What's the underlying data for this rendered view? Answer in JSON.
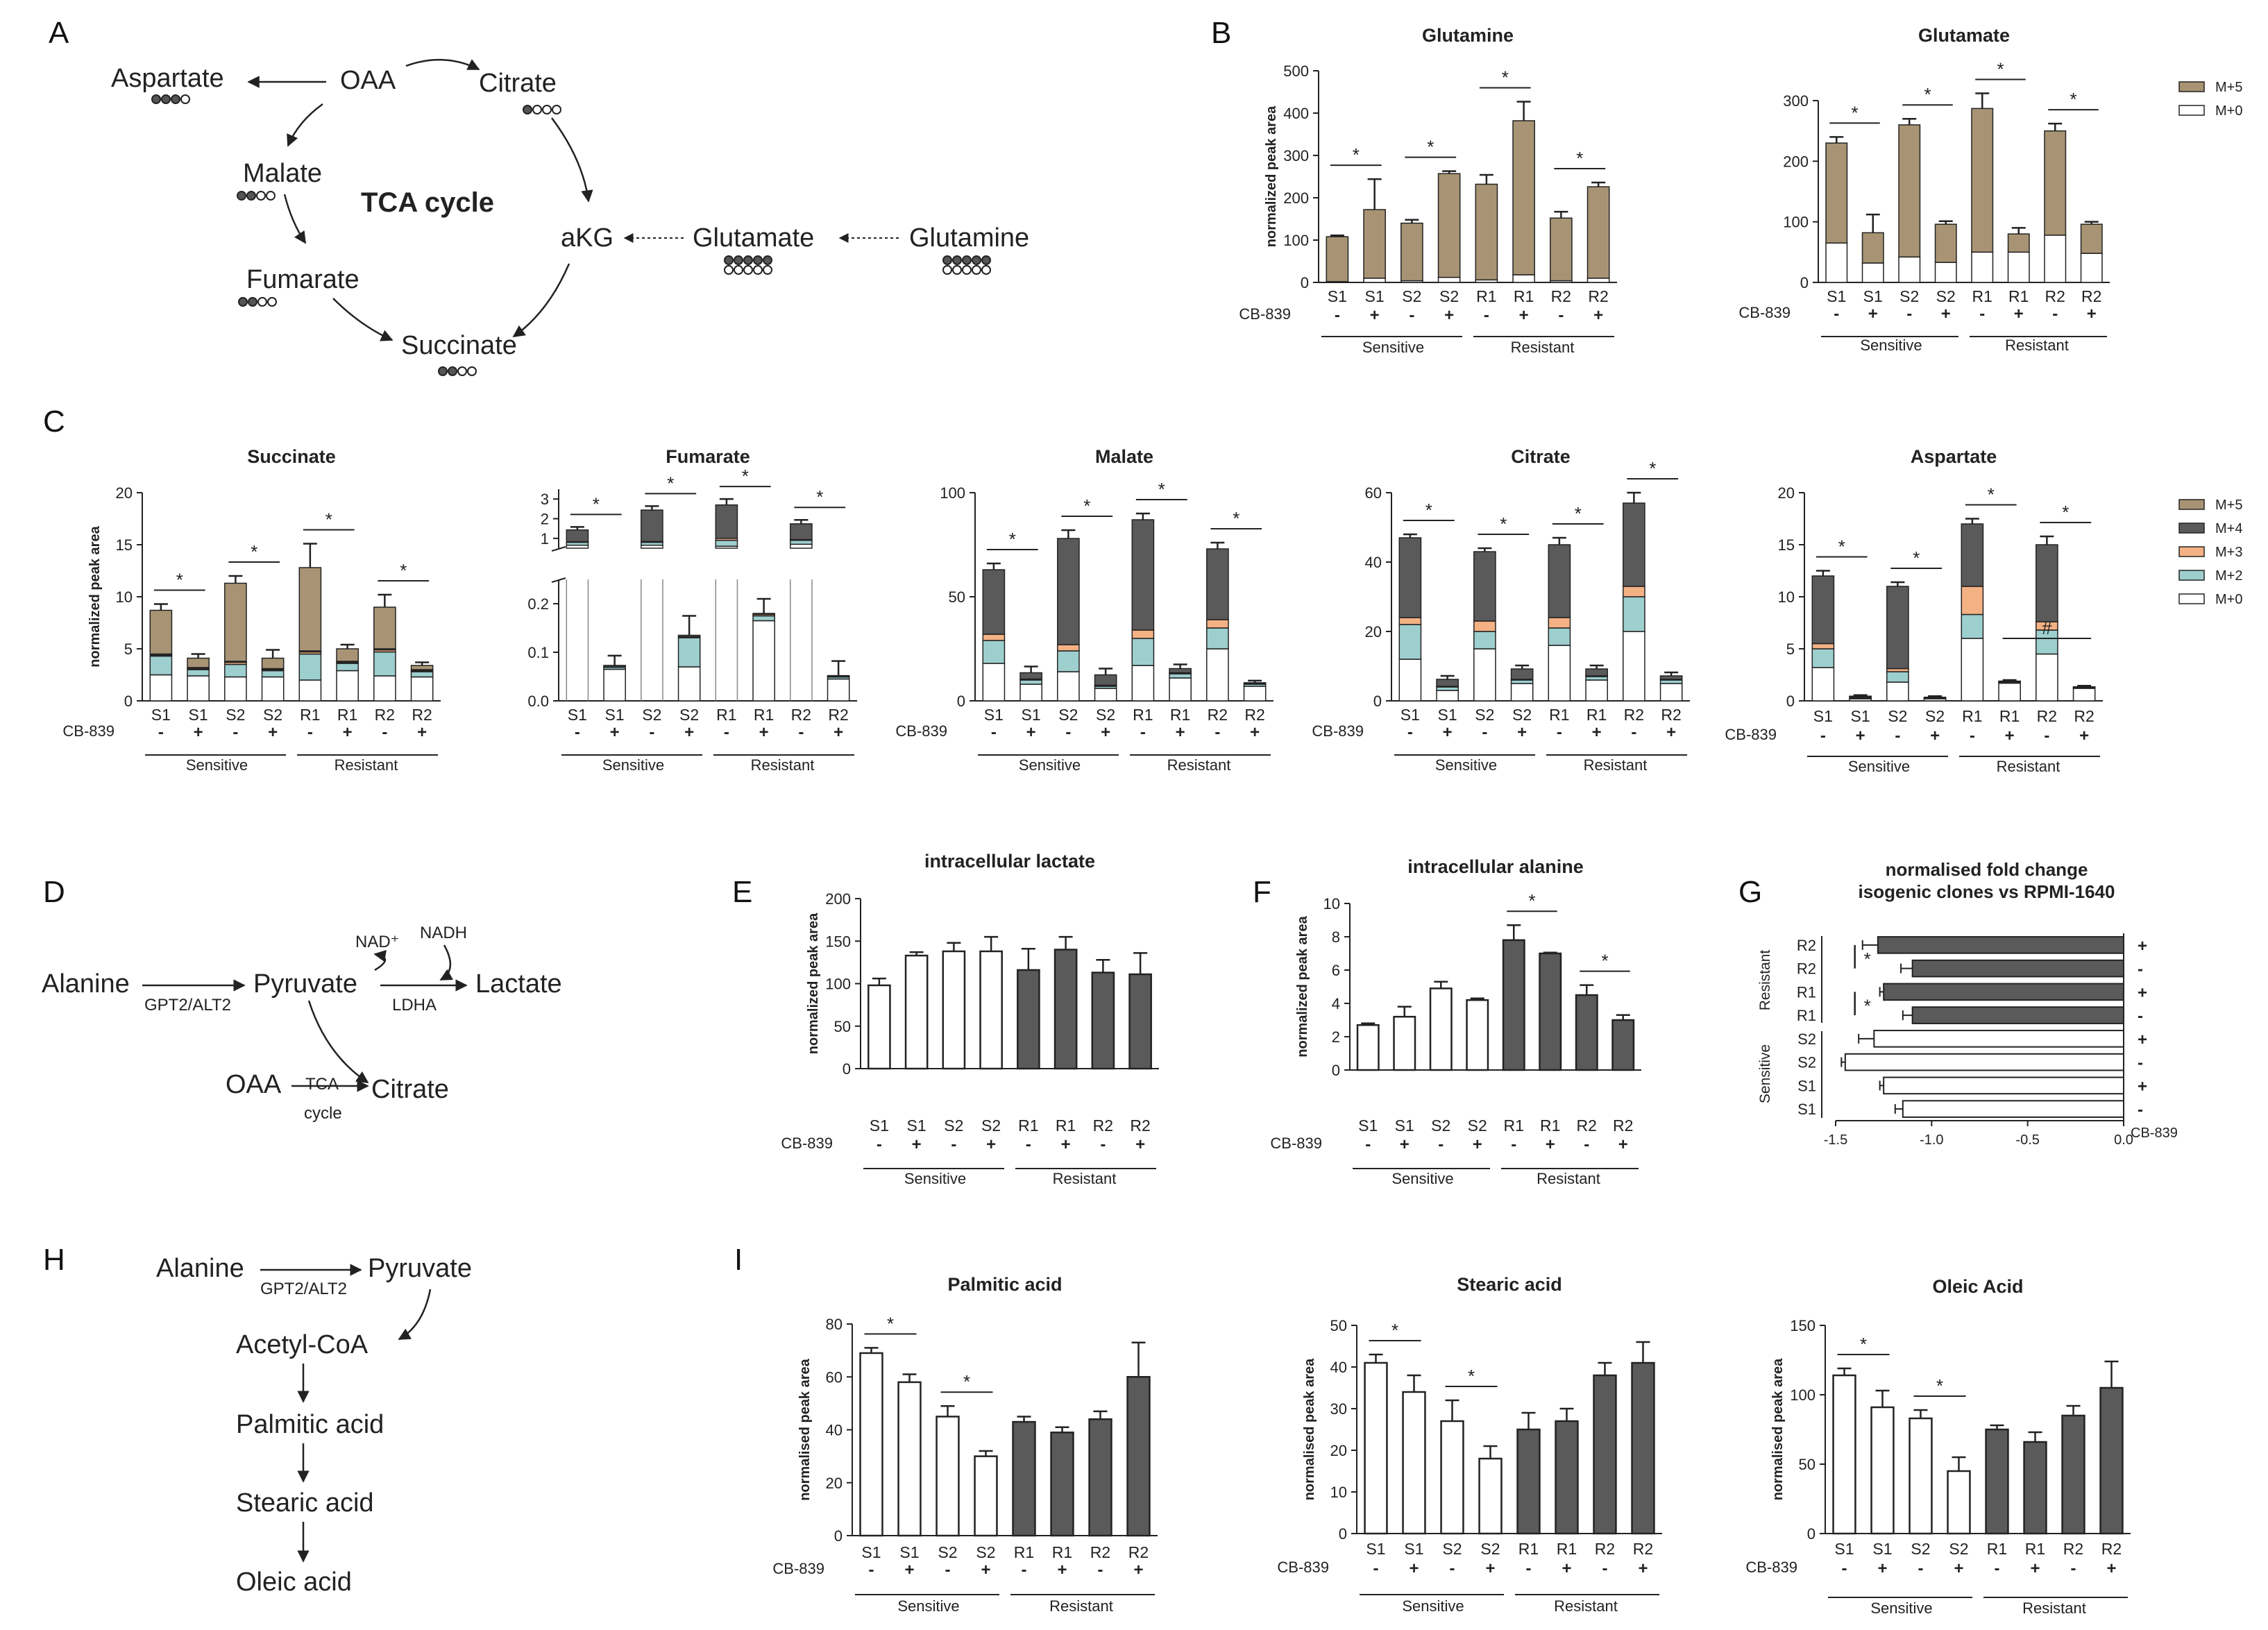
{
  "panel_letters": {
    "A": "A",
    "B": "B",
    "C": "C",
    "D": "D",
    "E": "E",
    "F": "F",
    "G": "G",
    "H": "H",
    "I": "I"
  },
  "diagramA": {
    "title": "TCA cycle",
    "nodes": {
      "aspartate": "Aspartate",
      "oaa": "OAA",
      "citrate": "Citrate",
      "malate": "Malate",
      "akg": "aKG",
      "glutamate": "Glutamate",
      "glutamine": "Glutamine",
      "fumarate": "Fumarate",
      "succinate": "Succinate"
    }
  },
  "diagramD": {
    "alanine": "Alanine",
    "pyruvate": "Pyruvate",
    "lactate": "Lactate",
    "oaa": "OAA",
    "citrate": "Citrate",
    "enzyme1": "GPT2/ALT2",
    "enzyme2": "LDHA",
    "nad": "NAD⁺",
    "nadh": "NADH",
    "tca1": "TCA",
    "tca2": "cycle"
  },
  "diagramH": {
    "alanine": "Alanine",
    "pyruvate": "Pyruvate",
    "enzyme": "GPT2/ALT2",
    "acetylcoa": "Acetyl-CoA",
    "palmitic": "Palmitic acid",
    "stearic": "Stearic acid",
    "oleic": "Oleic acid"
  },
  "colors": {
    "m5": "#a89474",
    "m4": "#5a5a5a",
    "m3": "#f4b183",
    "m2": "#9ecfcf",
    "m0": "#ffffff",
    "dark": "#5a5a5a",
    "light": "#ffffff",
    "stroke": "#222222"
  },
  "legends": {
    "B": [
      "M+5",
      "M+0"
    ],
    "C": [
      "M+5",
      "M+4",
      "M+3",
      "M+2",
      "M+0"
    ]
  },
  "chart_data": [
    {
      "id": "B1",
      "type": "bar",
      "stacked": true,
      "title": "Glutamine",
      "ylabel": "normalized peak area",
      "categories": [
        "S1",
        "S1",
        "S2",
        "S2",
        "R1",
        "R1",
        "R2",
        "R2"
      ],
      "cb839": [
        "-",
        "+",
        "-",
        "+",
        "-",
        "+",
        "-",
        "+"
      ],
      "groups": [
        "Sensitive",
        "Resistant"
      ],
      "treatment_label": "CB-839",
      "ylim": [
        0,
        500
      ],
      "yticks": [
        "0",
        "100",
        "200",
        "300",
        "400",
        "500"
      ],
      "series": [
        {
          "name": "M+0",
          "values": [
            2,
            10,
            4,
            12,
            6,
            18,
            4,
            10
          ]
        },
        {
          "name": "M+5",
          "values": [
            106,
            162,
            136,
            245,
            226,
            364,
            148,
            216
          ]
        }
      ],
      "errors": [
        3,
        72,
        8,
        6,
        22,
        45,
        15,
        10
      ],
      "sig": [
        "*",
        "*",
        "*",
        "*"
      ]
    },
    {
      "id": "B2",
      "type": "bar",
      "stacked": true,
      "title": "Glutamate",
      "ylabel": "",
      "categories": [
        "S1",
        "S1",
        "S2",
        "S2",
        "R1",
        "R1",
        "R2",
        "R2"
      ],
      "cb839": [
        "-",
        "+",
        "-",
        "+",
        "-",
        "+",
        "-",
        "+"
      ],
      "groups": [
        "Sensitive",
        "Resistant"
      ],
      "treatment_label": "CB-839",
      "ylim": [
        0,
        300
      ],
      "yticks": [
        "0",
        "100",
        "200",
        "300"
      ],
      "series": [
        {
          "name": "M+0",
          "values": [
            65,
            32,
            42,
            33,
            50,
            50,
            78,
            48
          ]
        },
        {
          "name": "M+5",
          "values": [
            165,
            50,
            218,
            63,
            237,
            30,
            172,
            48
          ]
        }
      ],
      "errors": [
        10,
        30,
        10,
        5,
        25,
        10,
        12,
        4
      ],
      "sig": [
        "*",
        "*",
        "*",
        "*"
      ]
    },
    {
      "id": "C1",
      "type": "bar",
      "stacked": true,
      "title": "Succinate",
      "ylabel": "normalized peak area",
      "categories": [
        "S1",
        "S1",
        "S2",
        "S2",
        "R1",
        "R1",
        "R2",
        "R2"
      ],
      "cb839": [
        "-",
        "+",
        "-",
        "+",
        "-",
        "+",
        "-",
        "+"
      ],
      "groups": [
        "Sensitive",
        "Resistant"
      ],
      "treatment_label": "CB-839",
      "ylim": [
        0,
        20
      ],
      "yticks": [
        "0",
        "5",
        "10",
        "15",
        "20"
      ],
      "series": [
        {
          "name": "M+0",
          "values": [
            2.5,
            2.4,
            2.3,
            2.3,
            2.0,
            2.9,
            2.4,
            2.3
          ]
        },
        {
          "name": "M+2",
          "values": [
            1.8,
            0.6,
            1.2,
            0.6,
            2.5,
            0.7,
            2.3,
            0.5
          ]
        },
        {
          "name": "M+3",
          "values": [
            0.1,
            0.1,
            0.2,
            0.1,
            0.2,
            0.1,
            0.2,
            0.1
          ]
        },
        {
          "name": "M+4",
          "values": [
            0.1,
            0.1,
            0.1,
            0.1,
            0.1,
            0.1,
            0.1,
            0.1
          ]
        },
        {
          "name": "M+5",
          "values": [
            4.2,
            0.9,
            7.5,
            1.0,
            8.0,
            1.2,
            4.0,
            0.4
          ]
        }
      ],
      "errors": [
        0.6,
        0.4,
        0.7,
        0.8,
        2.3,
        0.4,
        1.2,
        0.3
      ],
      "sig": [
        "*",
        "*",
        "*",
        "*"
      ]
    },
    {
      "id": "C2",
      "type": "bar",
      "stacked": true,
      "title": "Fumarate",
      "ylabel": "",
      "categories": [
        "S1",
        "S1",
        "S2",
        "S2",
        "R1",
        "R1",
        "R2",
        "R2"
      ],
      "cb839": [
        "-",
        "+",
        "-",
        "+",
        "-",
        "+",
        "-",
        "+"
      ],
      "groups": [
        "Sensitive",
        "Resistant"
      ],
      "treatment_label": "CB-839",
      "axis_break": [
        0.25,
        0.5
      ],
      "ylim": [
        0,
        3.5
      ],
      "yticks_low": [
        "0.0",
        "0.1",
        "0.2"
      ],
      "yticks_high": [
        "1",
        "2",
        "3"
      ],
      "series": [
        {
          "name": "M+0",
          "values": [
            0.65,
            0.065,
            0.65,
            0.07,
            0.6,
            0.165,
            0.7,
            0.045
          ]
        },
        {
          "name": "M+2",
          "values": [
            0.15,
            0.004,
            0.15,
            0.06,
            0.3,
            0.01,
            0.2,
            0.004
          ]
        },
        {
          "name": "M+3",
          "values": [
            0.03,
            0.001,
            0.04,
            0.002,
            0.1,
            0.003,
            0.04,
            0.001
          ]
        },
        {
          "name": "M+4",
          "values": [
            0.6,
            0.003,
            1.6,
            0.003,
            1.7,
            0.002,
            0.8,
            0.002
          ]
        }
      ],
      "errors": [
        0.15,
        0.02,
        0.2,
        0.04,
        0.3,
        0.03,
        0.2,
        0.03
      ],
      "sig": [
        "*",
        "*",
        "*",
        "*"
      ]
    },
    {
      "id": "C3",
      "type": "bar",
      "stacked": true,
      "title": "Malate",
      "ylabel": "",
      "categories": [
        "S1",
        "S1",
        "S2",
        "S2",
        "R1",
        "R1",
        "R2",
        "R2"
      ],
      "cb839": [
        "-",
        "+",
        "-",
        "+",
        "-",
        "+",
        "-",
        "+"
      ],
      "groups": [
        "Sensitive",
        "Resistant"
      ],
      "treatment_label": "CB-839",
      "ylim": [
        0,
        100
      ],
      "yticks": [
        "0",
        "50",
        "100"
      ],
      "series": [
        {
          "name": "M+0",
          "values": [
            18,
            8,
            14,
            6,
            17,
            11,
            25,
            7
          ]
        },
        {
          "name": "M+2",
          "values": [
            11,
            2,
            10,
            1,
            13,
            2,
            10,
            1
          ]
        },
        {
          "name": "M+3",
          "values": [
            3,
            0.5,
            3,
            0.5,
            4,
            0.5,
            4,
            0.2
          ]
        },
        {
          "name": "M+4",
          "values": [
            31,
            3,
            51,
            5,
            53,
            2,
            34,
            0.5
          ]
        }
      ],
      "errors": [
        3,
        3,
        4,
        3,
        3,
        2,
        3,
        1
      ],
      "sig": [
        "*",
        "*",
        "*",
        "*"
      ]
    },
    {
      "id": "C4",
      "type": "bar",
      "stacked": true,
      "title": "Citrate",
      "ylabel": "",
      "categories": [
        "S1",
        "S1",
        "S2",
        "S2",
        "R1",
        "R1",
        "R2",
        "R2"
      ],
      "cb839": [
        "-",
        "+",
        "-",
        "+",
        "-",
        "+",
        "-",
        "+"
      ],
      "groups": [
        "Sensitive",
        "Resistant"
      ],
      "treatment_label": "CB-839",
      "ylim": [
        0,
        60
      ],
      "yticks": [
        "0",
        "20",
        "40",
        "60"
      ],
      "series": [
        {
          "name": "M+0",
          "values": [
            12,
            3,
            15,
            5,
            16,
            6,
            20,
            5
          ]
        },
        {
          "name": "M+2",
          "values": [
            10,
            1,
            5,
            1,
            5,
            1,
            10,
            1
          ]
        },
        {
          "name": "M+3",
          "values": [
            2,
            0.2,
            3,
            0.2,
            3,
            0.2,
            3,
            0.2
          ]
        },
        {
          "name": "M+4",
          "values": [
            23,
            2,
            20,
            3,
            21,
            2,
            24,
            1
          ]
        }
      ],
      "errors": [
        1,
        1,
        1,
        1,
        2,
        1,
        3,
        1
      ],
      "sig": [
        "*",
        "*",
        "*",
        "*"
      ]
    },
    {
      "id": "C5",
      "type": "bar",
      "stacked": true,
      "title": "Aspartate",
      "ylabel": "",
      "categories": [
        "S1",
        "S1",
        "S2",
        "S2",
        "R1",
        "R1",
        "R2",
        "R2"
      ],
      "cb839": [
        "-",
        "+",
        "-",
        "+",
        "-",
        "+",
        "-",
        "+"
      ],
      "groups": [
        "Sensitive",
        "Resistant"
      ],
      "treatment_label": "CB-839",
      "ylim": [
        0,
        20
      ],
      "yticks": [
        "0",
        "5",
        "10",
        "15",
        "20"
      ],
      "series": [
        {
          "name": "M+0",
          "values": [
            3.2,
            0.2,
            1.8,
            0.2,
            6.0,
            1.7,
            4.5,
            1.2
          ]
        },
        {
          "name": "M+2",
          "values": [
            1.8,
            0.1,
            1.0,
            0.05,
            2.3,
            0.1,
            2.3,
            0.05
          ]
        },
        {
          "name": "M+3",
          "values": [
            0.5,
            0.05,
            0.3,
            0.05,
            2.7,
            0.05,
            0.8,
            0.05
          ]
        },
        {
          "name": "M+4",
          "values": [
            6.5,
            0.1,
            7.9,
            0.05,
            6.0,
            0.05,
            7.4,
            0.05
          ]
        }
      ],
      "errors": [
        0.5,
        0.1,
        0.4,
        0.1,
        0.5,
        0.1,
        0.8,
        0.1
      ],
      "sig": [
        "*",
        "*",
        "*",
        "*",
        "#"
      ]
    },
    {
      "id": "E",
      "type": "bar",
      "title": "intracellular lactate",
      "ylabel": "normalized peak area",
      "categories": [
        "S1",
        "S1",
        "S2",
        "S2",
        "R1",
        "R1",
        "R2",
        "R2"
      ],
      "cb839": [
        "-",
        "+",
        "-",
        "+",
        "-",
        "+",
        "-",
        "+"
      ],
      "groups": [
        "Sensitive",
        "Resistant"
      ],
      "treatment_label": "CB-839",
      "ylim": [
        0,
        200
      ],
      "yticks": [
        "0",
        "50",
        "100",
        "150",
        "200"
      ],
      "values": [
        98,
        133,
        138,
        138,
        116,
        140,
        113,
        111
      ],
      "errors": [
        8,
        4,
        10,
        17,
        25,
        15,
        15,
        25
      ],
      "fills": [
        "light",
        "light",
        "light",
        "light",
        "dark",
        "dark",
        "dark",
        "dark"
      ],
      "sig": []
    },
    {
      "id": "F",
      "type": "bar",
      "title": "intracellular alanine",
      "ylabel": "normalized peak area",
      "categories": [
        "S1",
        "S1",
        "S2",
        "S2",
        "R1",
        "R1",
        "R2",
        "R2"
      ],
      "cb839": [
        "-",
        "+",
        "-",
        "+",
        "-",
        "+",
        "-",
        "+"
      ],
      "groups": [
        "Sensitive",
        "Resistant"
      ],
      "treatment_label": "CB-839",
      "ylim": [
        0,
        10
      ],
      "yticks": [
        "0",
        "2",
        "4",
        "6",
        "8",
        "10"
      ],
      "values": [
        2.7,
        3.2,
        4.9,
        4.2,
        7.8,
        7.0,
        4.5,
        3.0
      ],
      "errors": [
        0.1,
        0.6,
        0.4,
        0.1,
        0.9,
        0.05,
        0.6,
        0.3
      ],
      "fills": [
        "light",
        "light",
        "light",
        "light",
        "dark",
        "dark",
        "dark",
        "dark"
      ],
      "sig": [
        "*",
        "*"
      ]
    },
    {
      "id": "G",
      "type": "bar",
      "orientation": "horizontal",
      "title": "normalised fold change",
      "subtitle": "isogenic clones vs RPMI-1640",
      "categories": [
        "R2",
        "R2",
        "R1",
        "R1",
        "S2",
        "S2",
        "S1",
        "S1"
      ],
      "cb839": [
        "+",
        "-",
        "+",
        "-",
        "+",
        "-",
        "+",
        "-"
      ],
      "groups": [
        "Resistant",
        "Sensitive"
      ],
      "treatment_label": "CB-839",
      "xlim": [
        -1.5,
        0.0
      ],
      "xticks": [
        "-1.5",
        "-1.0",
        "-0.5",
        "0.0"
      ],
      "values": [
        -1.28,
        -1.1,
        -1.25,
        -1.1,
        -1.3,
        -1.45,
        -1.25,
        -1.15
      ],
      "errors": [
        0.08,
        0.06,
        0.02,
        0.05,
        0.08,
        0.02,
        0.02,
        0.04
      ],
      "fills": [
        "dark",
        "dark",
        "dark",
        "dark",
        "light",
        "light",
        "light",
        "light"
      ],
      "sig": [
        "*",
        "*"
      ]
    },
    {
      "id": "I1",
      "type": "bar",
      "title": "Palmitic acid",
      "ylabel": "normalised peak area",
      "categories": [
        "S1",
        "S1",
        "S2",
        "S2",
        "R1",
        "R1",
        "R2",
        "R2"
      ],
      "cb839": [
        "-",
        "+",
        "-",
        "+",
        "-",
        "+",
        "-",
        "+"
      ],
      "groups": [
        "Sensitive",
        "Resistant"
      ],
      "treatment_label": "CB-839",
      "ylim": [
        0,
        80
      ],
      "yticks": [
        "0",
        "20",
        "40",
        "60",
        "80"
      ],
      "values": [
        69,
        58,
        45,
        30,
        43,
        39,
        44,
        60
      ],
      "errors": [
        2,
        3,
        4,
        2,
        2,
        2,
        3,
        13
      ],
      "fills": [
        "light",
        "light",
        "light",
        "light",
        "dark",
        "dark",
        "dark",
        "dark"
      ],
      "sig": [
        "*",
        "*"
      ]
    },
    {
      "id": "I2",
      "type": "bar",
      "title": "Stearic acid",
      "ylabel": "normalised peak area",
      "categories": [
        "S1",
        "S1",
        "S2",
        "S2",
        "R1",
        "R1",
        "R2",
        "R2"
      ],
      "cb839": [
        "-",
        "+",
        "-",
        "+",
        "-",
        "+",
        "-",
        "+"
      ],
      "groups": [
        "Sensitive",
        "Resistant"
      ],
      "treatment_label": "CB-839",
      "ylim": [
        0,
        50
      ],
      "yticks": [
        "0",
        "10",
        "20",
        "30",
        "40",
        "50"
      ],
      "values": [
        41,
        34,
        27,
        18,
        25,
        27,
        38,
        41
      ],
      "errors": [
        2,
        4,
        5,
        3,
        4,
        3,
        3,
        5
      ],
      "fills": [
        "light",
        "light",
        "light",
        "light",
        "dark",
        "dark",
        "dark",
        "dark"
      ],
      "sig": [
        "*",
        "*"
      ]
    },
    {
      "id": "I3",
      "type": "bar",
      "title": "Oleic Acid",
      "ylabel": "normalised peak area",
      "categories": [
        "S1",
        "S1",
        "S2",
        "S2",
        "R1",
        "R1",
        "R2",
        "R2"
      ],
      "cb839": [
        "-",
        "+",
        "-",
        "+",
        "-",
        "+",
        "-",
        "+"
      ],
      "groups": [
        "Sensitive",
        "Resistant"
      ],
      "treatment_label": "CB-839",
      "ylim": [
        0,
        150
      ],
      "yticks": [
        "0",
        "50",
        "100",
        "150"
      ],
      "values": [
        114,
        91,
        83,
        45,
        75,
        66,
        85,
        105
      ],
      "errors": [
        5,
        12,
        6,
        10,
        3,
        7,
        7,
        19
      ],
      "fills": [
        "light",
        "light",
        "light",
        "light",
        "dark",
        "dark",
        "dark",
        "dark"
      ],
      "sig": [
        "*",
        "*"
      ]
    }
  ]
}
